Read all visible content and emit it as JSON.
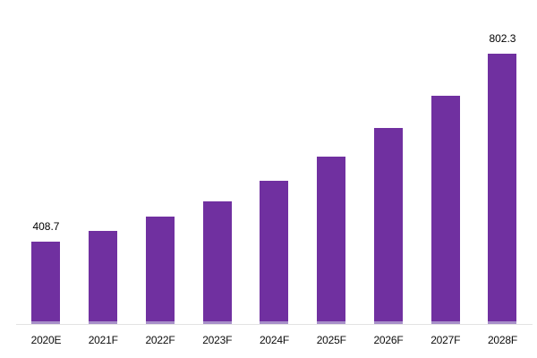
{
  "chart_data": {
    "type": "bar",
    "title": "",
    "xlabel": "",
    "ylabel": "",
    "categories": [
      "2020E",
      "2021F",
      "2022F",
      "2023F",
      "2024F",
      "2025F",
      "2026F",
      "2027F",
      "2028F"
    ],
    "values": [
      408.7,
      430,
      460,
      492,
      535,
      586,
      646,
      714,
      802.3
    ],
    "data_labels": [
      "408.7",
      "",
      "",
      "",
      "",
      "",
      "",
      "",
      "802.3"
    ],
    "ylim": [
      235,
      875
    ],
    "grid": false,
    "legend": "none",
    "y_axis_visible": false,
    "bar_color": "#7030a0",
    "bar_bottom_edge_color": "#a78fc9",
    "axis_line_color": "#e3e3e3",
    "label_color": "#000000"
  }
}
